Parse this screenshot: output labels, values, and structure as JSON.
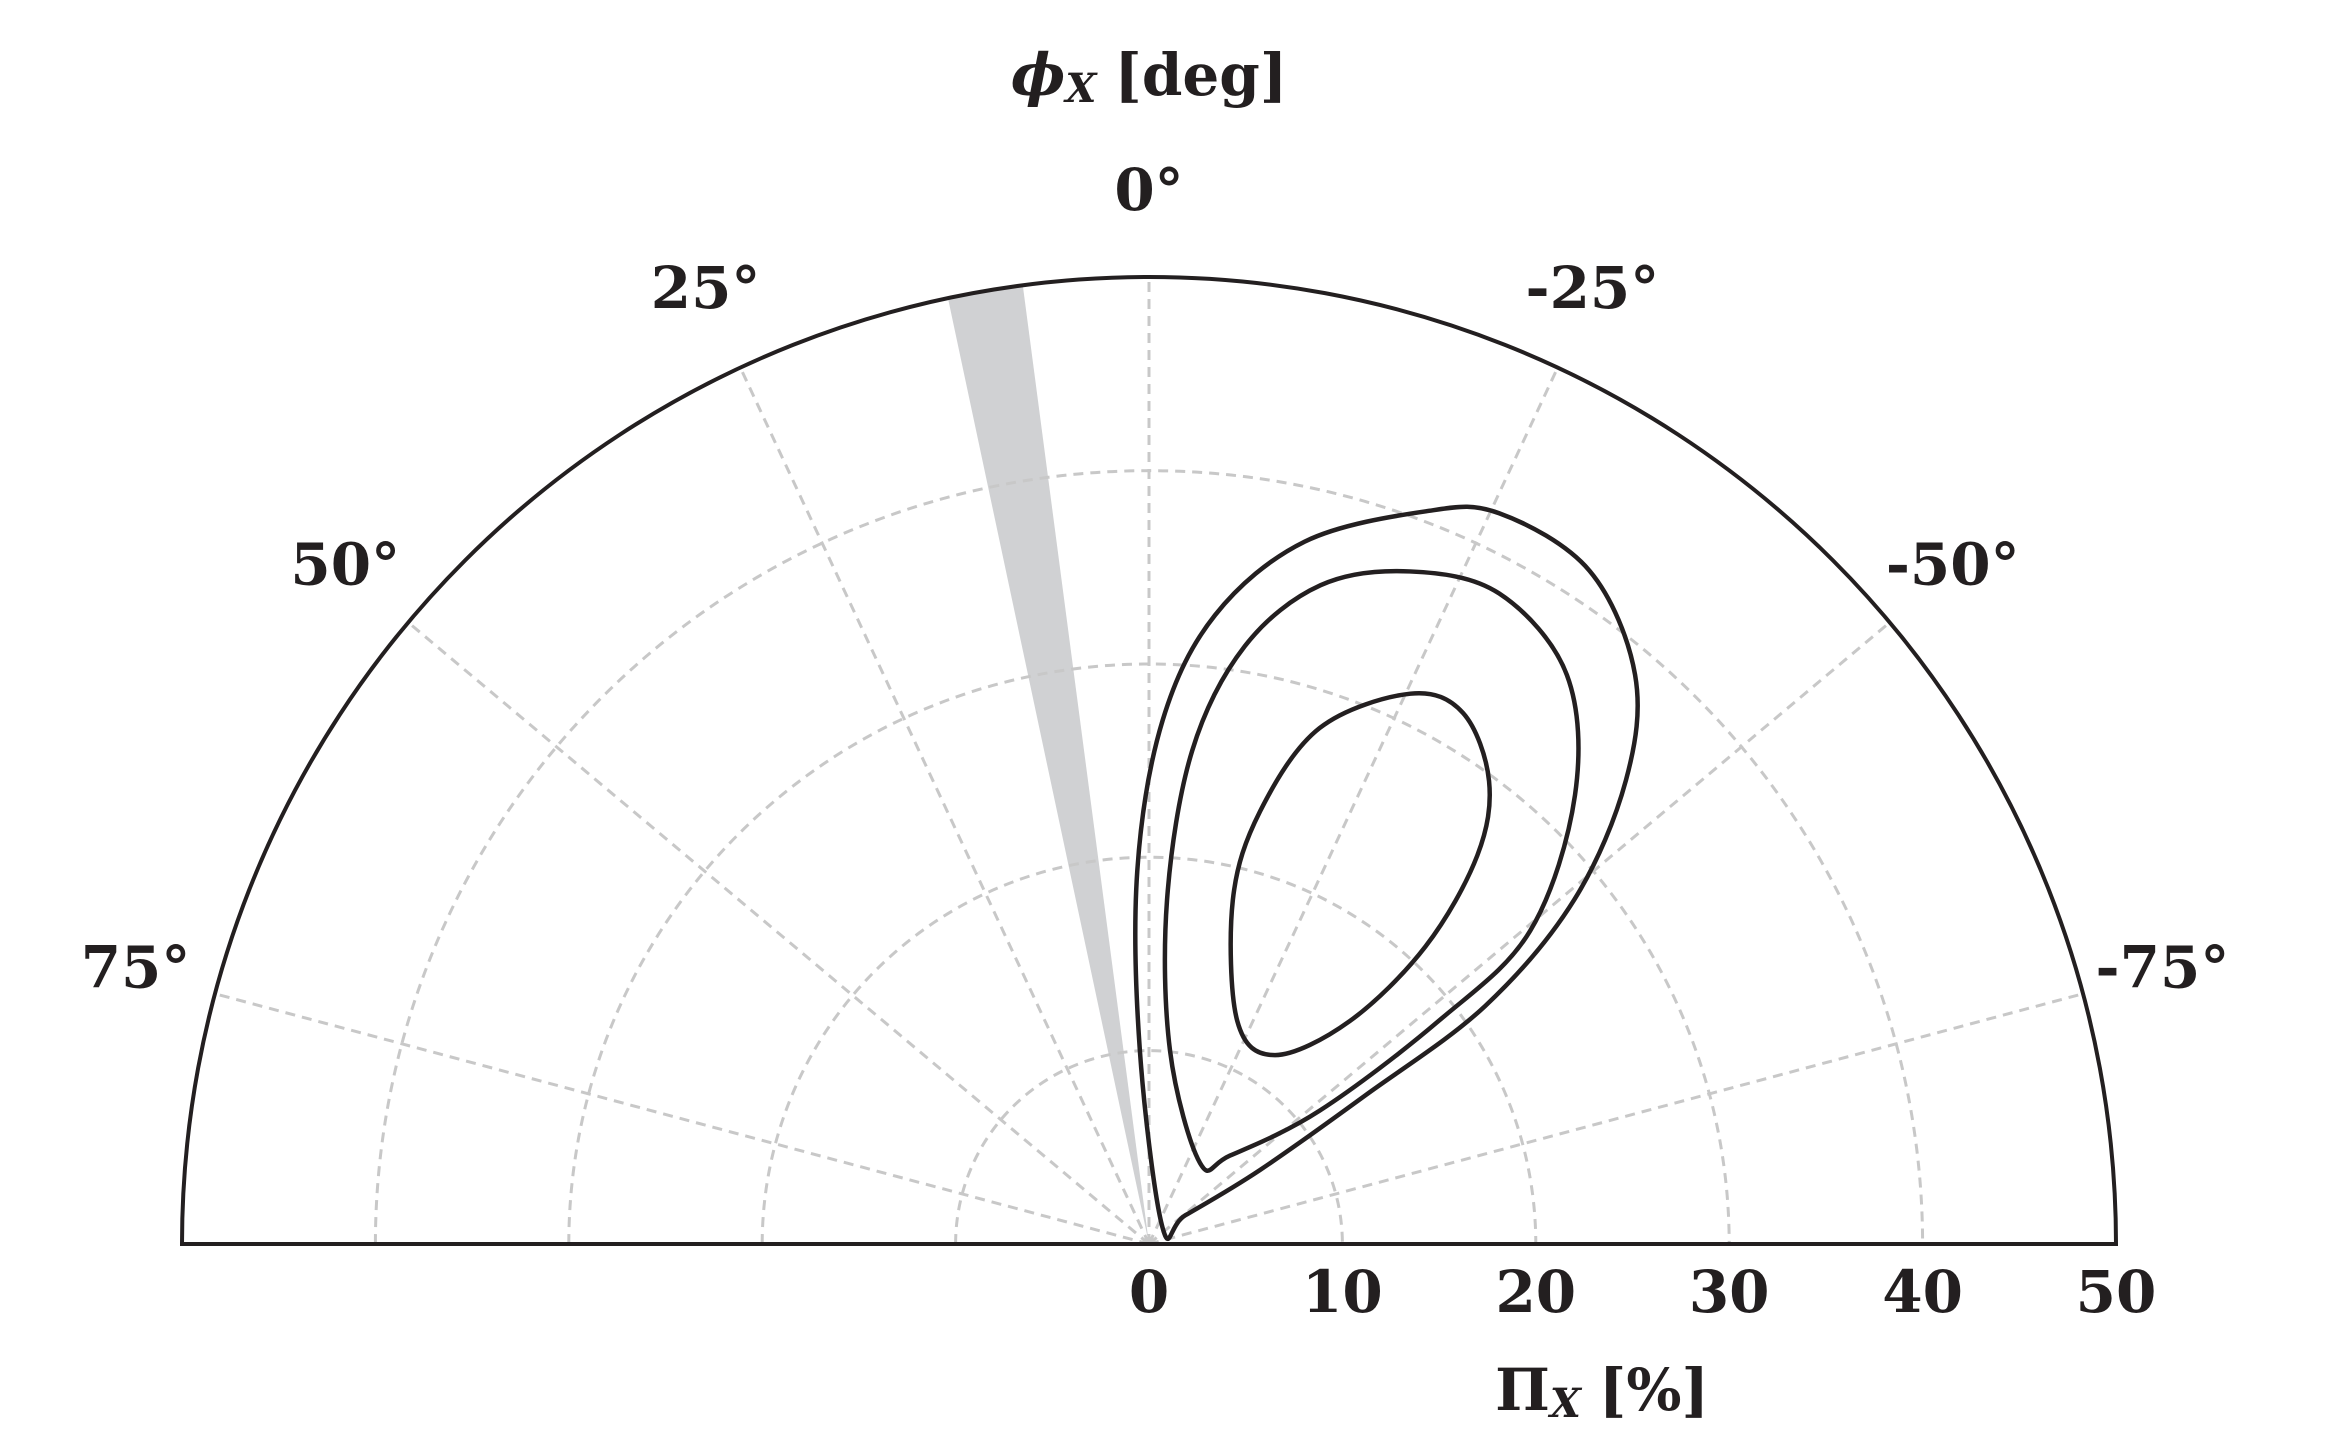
{
  "chart_data": {
    "type": "polar_contour",
    "theta_axis_label": {
      "symbol": "ϕ",
      "sub": "X",
      "unit": "[deg]"
    },
    "r_axis_label": {
      "symbol": "Π",
      "sub": "X",
      "unit": "[%]"
    },
    "thetalim": [
      90,
      -90
    ],
    "thetaticks": [
      {
        "value": 75,
        "label": "75°"
      },
      {
        "value": 50,
        "label": "50°"
      },
      {
        "value": 25,
        "label": "25°"
      },
      {
        "value": 0,
        "label": "0°"
      },
      {
        "value": -25,
        "label": "-25°"
      },
      {
        "value": -50,
        "label": "-50°"
      },
      {
        "value": -75,
        "label": "-75°"
      }
    ],
    "rlim": [
      0,
      50
    ],
    "rticks": [
      0,
      10,
      20,
      30,
      40,
      50
    ],
    "grid": true,
    "shaded_sector": {
      "theta": [
        7.5,
        12
      ],
      "color": "#d0d1d3"
    },
    "series": [
      {
        "color": "#231f20",
        "theta": [
          -39.5,
          2.7,
          1.8,
          -1.5,
          -6.0,
          -12.5,
          -20.7,
          -25.6,
          -33.2,
          -40.5,
          -45.8,
          -51.0,
          -54.7,
          -55.5,
          -56.3,
          -51.7
        ],
        "r": [
          1.1,
          10.0,
          19.3,
          27.1,
          32.7,
          37.2,
          40.5,
          41.9,
          41.6,
          38.7,
          34.4,
          28.3,
          21.3,
          13.6,
          6.9,
          2.4
        ]
      },
      {
        "color": "#231f20",
        "theta": [
          -32.2,
          -6.2,
          -3.0,
          -5.0,
          -9.1,
          -14.6,
          -21.2,
          -28.3,
          -36.3,
          -43.5,
          -50.6,
          -52.4,
          -52.0,
          -42.5
        ],
        "r": [
          4.95,
          10.06,
          17.8,
          25.6,
          31.3,
          35.2,
          37.3,
          38.2,
          36.5,
          32.0,
          25.5,
          18.9,
          11.2,
          6.2
        ]
      },
      {
        "color": "#231f20",
        "theta": [
          -33.7,
          -21.6,
          -13.7,
          -14.4,
          -18.3,
          -25.4,
          -30.6,
          -36.3,
          -40.2,
          -42.9,
          -42.0
        ],
        "r": [
          11.74,
          12.4,
          18.3,
          23.1,
          28.1,
          31.5,
          31.9,
          29.7,
          26.3,
          21.0,
          15.5
        ]
      }
    ]
  }
}
